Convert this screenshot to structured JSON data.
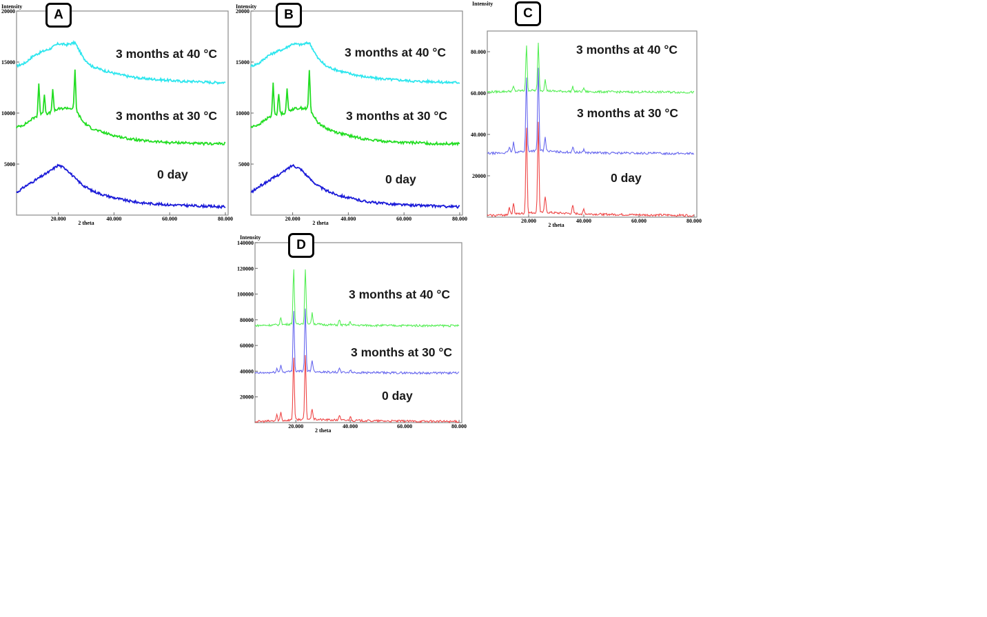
{
  "chart_data": [
    {
      "type": "line",
      "panel_label": "A",
      "ylabel": "Intensity",
      "xlabel": "2 theta",
      "xlim": [
        5,
        81
      ],
      "ylim": [
        0,
        20000
      ],
      "x_ticks": [
        "20.000",
        "40.000",
        "60.000",
        "80.000"
      ],
      "y_ticks": [
        "20000",
        "15000",
        "10000",
        "5000"
      ],
      "annotations": [
        "3 months at 40 °C",
        "3 months at 30 °C",
        "0 day"
      ],
      "series": [
        {
          "color": "#2ee6ee",
          "peaks": [],
          "x": [
            5,
            8,
            11,
            14,
            17,
            20,
            23,
            26,
            29,
            32,
            36,
            40,
            45,
            50,
            55,
            60,
            65,
            70,
            75,
            80
          ],
          "y": [
            14600,
            14900,
            15600,
            16000,
            16300,
            16800,
            16700,
            16900,
            15400,
            14600,
            14200,
            13900,
            13600,
            13400,
            13300,
            13200,
            13100,
            13100,
            13000,
            13000
          ]
        },
        {
          "color": "#22dd22",
          "peaks": [
            [
              13,
              12900
            ],
            [
              15,
              11900
            ],
            [
              18,
              12300
            ],
            [
              26,
              14200
            ]
          ],
          "x": [
            5,
            8,
            11,
            14,
            17,
            20,
            23,
            26,
            29,
            32,
            36,
            40,
            45,
            50,
            55,
            60,
            65,
            70,
            75,
            80
          ],
          "y": [
            8600,
            8900,
            9500,
            9900,
            10000,
            10400,
            10500,
            10400,
            9100,
            8500,
            8100,
            7800,
            7500,
            7300,
            7200,
            7100,
            7100,
            7000,
            7000,
            7000
          ]
        },
        {
          "color": "#1a1ad8",
          "peaks": [],
          "x": [
            5,
            8,
            11,
            14,
            17,
            20,
            23,
            26,
            29,
            32,
            36,
            40,
            45,
            50,
            55,
            60,
            65,
            70,
            75,
            80
          ],
          "y": [
            2200,
            2800,
            3300,
            3800,
            4300,
            4900,
            4500,
            3600,
            2900,
            2400,
            2000,
            1700,
            1400,
            1200,
            1100,
            1000,
            950,
            900,
            850,
            800
          ]
        }
      ]
    },
    {
      "type": "line",
      "panel_label": "B",
      "ylabel": "Intensity",
      "xlabel": "2 theta",
      "xlim": [
        5,
        81
      ],
      "ylim": [
        0,
        20000
      ],
      "x_ticks": [
        "20.000",
        "40.000",
        "60.000",
        "80.000"
      ],
      "y_ticks": [
        "20000",
        "15000",
        "10000",
        "5000"
      ],
      "annotations": [
        "3 months at 40 °C",
        "3 months at 30 °C",
        "0 day"
      ],
      "series": [
        {
          "color": "#2ee6ee",
          "peaks": [],
          "x": [
            5,
            8,
            11,
            14,
            17,
            20,
            23,
            26,
            29,
            32,
            36,
            40,
            45,
            50,
            55,
            60,
            65,
            70,
            75,
            80
          ],
          "y": [
            14600,
            14900,
            15600,
            16000,
            16300,
            16800,
            16700,
            16900,
            15400,
            14600,
            14200,
            13900,
            13600,
            13400,
            13300,
            13200,
            13100,
            13100,
            13000,
            13000
          ]
        },
        {
          "color": "#22dd22",
          "peaks": [
            [
              13,
              12900
            ],
            [
              15,
              11900
            ],
            [
              18,
              12300
            ],
            [
              26,
              14200
            ]
          ],
          "x": [
            5,
            8,
            11,
            14,
            17,
            20,
            23,
            26,
            29,
            32,
            36,
            40,
            45,
            50,
            55,
            60,
            65,
            70,
            75,
            80
          ],
          "y": [
            8600,
            8900,
            9500,
            9900,
            10000,
            10400,
            10500,
            10400,
            9100,
            8500,
            8100,
            7800,
            7500,
            7300,
            7200,
            7100,
            7100,
            7000,
            7000,
            7000
          ]
        },
        {
          "color": "#1a1ad8",
          "peaks": [],
          "x": [
            5,
            8,
            11,
            14,
            17,
            20,
            23,
            26,
            29,
            32,
            36,
            40,
            45,
            50,
            55,
            60,
            65,
            70,
            75,
            80
          ],
          "y": [
            2200,
            2800,
            3300,
            3800,
            4300,
            4900,
            4500,
            3600,
            2900,
            2400,
            2000,
            1700,
            1400,
            1200,
            1100,
            1000,
            950,
            900,
            850,
            800
          ]
        }
      ]
    },
    {
      "type": "line",
      "panel_label": "C",
      "ylabel": "Intensity",
      "xlabel": "2 theta",
      "xlim": [
        5,
        81
      ],
      "ylim": [
        0,
        90000
      ],
      "x_ticks": [
        "20.000",
        "40.000",
        "60.000",
        "80.000"
      ],
      "y_ticks": [
        "80.000",
        "60.000",
        "40.000",
        "20000"
      ],
      "annotations": [
        "3 months at 40 °C",
        "3 months at 30 °C",
        "0 day"
      ],
      "series": [
        {
          "color": "#55ee55",
          "peaks": [
            [
              19.2,
              83000
            ],
            [
              23.5,
              84000
            ],
            [
              26,
              67000
            ],
            [
              14.5,
              63000
            ],
            [
              36,
              63000
            ],
            [
              40,
              62500
            ]
          ],
          "x": [
            5,
            10,
            15,
            20,
            25,
            30,
            35,
            40,
            45,
            50,
            55,
            60,
            65,
            70,
            75,
            80
          ],
          "y": [
            60500,
            60700,
            61000,
            61300,
            61200,
            60900,
            60800,
            60700,
            60600,
            60600,
            60500,
            60500,
            60500,
            60500,
            60400,
            60400
          ]
        },
        {
          "color": "#6666ee",
          "peaks": [
            [
              19.2,
              68000
            ],
            [
              23.5,
              72000
            ],
            [
              26,
              39000
            ],
            [
              14.5,
              36000
            ],
            [
              13,
              34000
            ],
            [
              36,
              34000
            ],
            [
              40,
              33000
            ]
          ],
          "x": [
            5,
            10,
            15,
            20,
            25,
            30,
            35,
            40,
            45,
            50,
            55,
            60,
            65,
            70,
            75,
            80
          ],
          "y": [
            30800,
            31000,
            31500,
            32000,
            32200,
            31600,
            31400,
            31200,
            31100,
            31000,
            31000,
            30900,
            30900,
            30800,
            30800,
            30800
          ]
        },
        {
          "color": "#ee4444",
          "peaks": [
            [
              19.2,
              44000
            ],
            [
              23.5,
              46000
            ],
            [
              26,
              10000
            ],
            [
              14.5,
              7000
            ],
            [
              13,
              5000
            ],
            [
              36,
              5500
            ],
            [
              40,
              4000
            ]
          ],
          "x": [
            5,
            10,
            15,
            20,
            25,
            30,
            35,
            40,
            45,
            50,
            55,
            60,
            65,
            70,
            75,
            80
          ],
          "y": [
            800,
            1000,
            1500,
            2000,
            2500,
            2000,
            1800,
            1600,
            1400,
            1300,
            1200,
            1100,
            1000,
            1000,
            900,
            900
          ]
        }
      ]
    },
    {
      "type": "line",
      "panel_label": "D",
      "ylabel": "Intensity",
      "xlabel": "2 theta",
      "xlim": [
        5,
        81
      ],
      "ylim": [
        0,
        140000
      ],
      "x_ticks": [
        "20.000",
        "40.000",
        "60.000",
        "80.000"
      ],
      "y_ticks": [
        "140000",
        "120000",
        "100000",
        "80000",
        "60000",
        "40000",
        "20000"
      ],
      "annotations": [
        "3 months at 40 °C",
        "3 months at 30 °C",
        "0 day"
      ],
      "series": [
        {
          "color": "#55ee55",
          "peaks": [
            [
              19.2,
              120000
            ],
            [
              23.5,
              120000
            ],
            [
              26,
              85000
            ],
            [
              14.5,
              82000
            ],
            [
              36,
              80000
            ],
            [
              40,
              79000
            ]
          ],
          "x": [
            5,
            10,
            15,
            20,
            25,
            30,
            35,
            40,
            45,
            50,
            55,
            60,
            65,
            70,
            75,
            80
          ],
          "y": [
            75500,
            75800,
            76200,
            77000,
            77200,
            76200,
            76000,
            75800,
            75700,
            75600,
            75500,
            75500,
            75500,
            75400,
            75400,
            75400
          ]
        },
        {
          "color": "#6666ee",
          "peaks": [
            [
              19.2,
              88000
            ],
            [
              23.5,
              88000
            ],
            [
              26,
              49000
            ],
            [
              14.5,
              45000
            ],
            [
              13,
              42000
            ],
            [
              36,
              42000
            ],
            [
              40,
              41000
            ]
          ],
          "x": [
            5,
            10,
            15,
            20,
            25,
            30,
            35,
            40,
            45,
            50,
            55,
            60,
            65,
            70,
            75,
            80
          ],
          "y": [
            38500,
            38800,
            39300,
            40000,
            40200,
            39400,
            39200,
            39000,
            38900,
            38800,
            38700,
            38700,
            38600,
            38600,
            38600,
            38600
          ]
        },
        {
          "color": "#ee4444",
          "peaks": [
            [
              19.2,
              52000
            ],
            [
              23.5,
              52000
            ],
            [
              26,
              11000
            ],
            [
              14.5,
              8000
            ],
            [
              13,
              6000
            ],
            [
              36,
              6000
            ],
            [
              40,
              5000
            ]
          ],
          "x": [
            5,
            10,
            15,
            20,
            25,
            30,
            35,
            40,
            45,
            50,
            55,
            60,
            65,
            70,
            75,
            80
          ],
          "y": [
            800,
            1100,
            1600,
            2300,
            2800,
            2200,
            1900,
            1700,
            1500,
            1300,
            1200,
            1100,
            1000,
            1000,
            900,
            900
          ]
        }
      ]
    }
  ]
}
